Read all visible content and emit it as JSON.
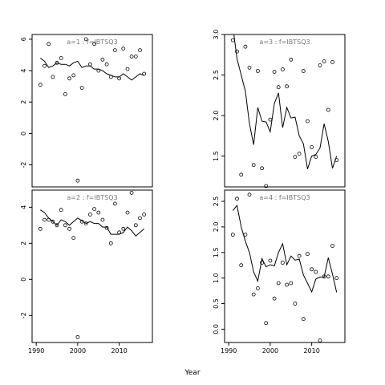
{
  "xlabel": "Year",
  "chart_data": [
    {
      "type": "scatter",
      "title": "a=1  :  f=IBTSQ3",
      "xlim": [
        1989,
        2018
      ],
      "ylim": [
        -3.4,
        6.3
      ],
      "yticks": [
        -2,
        0,
        2,
        4,
        6
      ],
      "xticks": [],
      "points": {
        "x": [
          1991,
          1992,
          1993,
          1994,
          1995,
          1996,
          1997,
          1998,
          1999,
          2000,
          2001,
          2002,
          2003,
          2004,
          2005,
          2006,
          2007,
          2008,
          2009,
          2010,
          2011,
          2012,
          2013,
          2014,
          2015,
          2016
        ],
        "y": [
          3.1,
          4.3,
          5.7,
          3.6,
          4.5,
          4.8,
          2.5,
          3.5,
          3.7,
          -3.0,
          2.9,
          6.0,
          4.4,
          5.7,
          4.0,
          4.7,
          4.4,
          3.6,
          5.3,
          3.5,
          5.4,
          4.1,
          4.9,
          4.9,
          5.3,
          3.8
        ]
      },
      "fit": {
        "x": [
          1991,
          1992,
          1993,
          1994,
          1995,
          1996,
          1997,
          1998,
          1999,
          2000,
          2001,
          2002,
          2003,
          2004,
          2005,
          2006,
          2007,
          2008,
          2009,
          2010,
          2011,
          2012,
          2013,
          2014,
          2015,
          2016
        ],
        "y": [
          4.8,
          4.6,
          4.2,
          4.3,
          4.5,
          4.4,
          4.4,
          4.3,
          4.5,
          4.6,
          4.2,
          4.3,
          4.3,
          4.1,
          4.1,
          4.0,
          3.8,
          3.7,
          3.6,
          3.6,
          3.8,
          3.6,
          3.4,
          3.6,
          3.8,
          3.7
        ]
      }
    },
    {
      "type": "scatter",
      "title": "a=3  :  f=IBTSQ3",
      "xlim": [
        1989,
        2018
      ],
      "ylim": [
        1.12,
        3.0
      ],
      "yticks": [
        1.5,
        2.0,
        2.5,
        3.0
      ],
      "ytick_labels": [
        "1.5",
        "2.0",
        "2.5",
        "3.0"
      ],
      "xticks": [],
      "points": {
        "x": [
          1991,
          1992,
          1993,
          1994,
          1995,
          1996,
          1997,
          1998,
          1999,
          2000,
          2001,
          2002,
          2003,
          2004,
          2005,
          2006,
          2007,
          2008,
          2009,
          2010,
          2011,
          2012,
          2013,
          2014,
          2015,
          2016
        ],
        "y": [
          2.93,
          2.79,
          1.27,
          2.85,
          2.59,
          1.39,
          2.55,
          1.35,
          1.13,
          1.95,
          2.54,
          2.35,
          2.57,
          2.36,
          2.69,
          1.49,
          1.53,
          2.55,
          1.93,
          1.61,
          1.49,
          2.62,
          2.67,
          2.07,
          2.66,
          1.45
        ]
      },
      "fit": {
        "x": [
          1991,
          1992,
          1993,
          1994,
          1995,
          1996,
          1997,
          1998,
          1999,
          2000,
          2001,
          2002,
          2003,
          2004,
          2005,
          2006,
          2007,
          2008,
          2009,
          2010,
          2011,
          2012,
          2013,
          2014,
          2015,
          2016
        ],
        "y": [
          3.1,
          2.7,
          2.5,
          2.3,
          1.9,
          1.64,
          2.1,
          1.93,
          1.92,
          1.8,
          2.15,
          2.28,
          1.85,
          2.1,
          1.97,
          1.98,
          1.75,
          1.65,
          1.34,
          1.5,
          1.52,
          1.6,
          1.9,
          1.68,
          1.35,
          1.5
        ]
      }
    },
    {
      "type": "scatter",
      "title": "a=2  :  f=IBTSQ3",
      "xlim": [
        1989,
        2018
      ],
      "ylim": [
        -3.5,
        4.95
      ],
      "yticks": [
        -2,
        0,
        2,
        4
      ],
      "xticks": [
        1990,
        2000,
        2010
      ],
      "points": {
        "x": [
          1991,
          1992,
          1993,
          1994,
          1995,
          1996,
          1997,
          1998,
          1999,
          2000,
          2001,
          2002,
          2003,
          2004,
          2005,
          2006,
          2007,
          2008,
          2009,
          2010,
          2011,
          2012,
          2013,
          2014,
          2015,
          2016
        ],
        "y": [
          2.8,
          3.3,
          3.3,
          3.2,
          3.0,
          3.85,
          3.0,
          2.8,
          2.3,
          -3.2,
          3.2,
          3.1,
          3.6,
          3.9,
          3.7,
          3.3,
          2.85,
          2.0,
          4.2,
          2.6,
          2.8,
          3.7,
          4.8,
          3.0,
          3.4,
          3.6
        ]
      },
      "fit": {
        "x": [
          1991,
          1992,
          1993,
          1994,
          1995,
          1996,
          1997,
          1998,
          1999,
          2000,
          2001,
          2002,
          2003,
          2004,
          2005,
          2006,
          2007,
          2008,
          2009,
          2010,
          2011,
          2012,
          2013,
          2014,
          2015,
          2016
        ],
        "y": [
          3.85,
          3.7,
          3.4,
          3.2,
          3.0,
          3.3,
          3.2,
          3.0,
          3.2,
          3.4,
          3.25,
          3.1,
          3.2,
          3.1,
          3.1,
          2.9,
          2.9,
          2.5,
          2.5,
          2.5,
          2.6,
          2.9,
          2.7,
          2.4,
          2.6,
          2.8
        ]
      }
    },
    {
      "type": "scatter",
      "title": "a=4  :  f=IBTSQ3",
      "xlim": [
        1989,
        2018
      ],
      "ylim": [
        -0.26,
        2.72
      ],
      "yticks": [
        0.0,
        0.5,
        1.0,
        1.5,
        2.0,
        2.5
      ],
      "ytick_labels": [
        "0.0",
        "0.5",
        "1.0",
        "1.5",
        "2.0",
        "2.5"
      ],
      "xticks": [
        1990,
        2000,
        2010
      ],
      "points": {
        "x": [
          1991,
          1992,
          1993,
          1994,
          1995,
          1996,
          1997,
          1998,
          1999,
          2000,
          2001,
          2002,
          2003,
          2004,
          2005,
          2006,
          2007,
          2008,
          2009,
          2010,
          2011,
          2012,
          2013,
          2014,
          2015,
          2016
        ],
        "y": [
          1.85,
          2.55,
          1.25,
          1.85,
          2.63,
          0.68,
          0.8,
          1.3,
          0.12,
          1.34,
          0.6,
          0.9,
          1.3,
          0.87,
          0.9,
          0.5,
          1.43,
          0.2,
          1.47,
          1.17,
          1.12,
          -0.22,
          1.03,
          1.03,
          1.63,
          1.0
        ]
      },
      "fit": {
        "x": [
          1991,
          1992,
          1993,
          1994,
          1995,
          1996,
          1997,
          1998,
          1999,
          2000,
          2001,
          2002,
          2003,
          2004,
          2005,
          2006,
          2007,
          2008,
          2009,
          2010,
          2011,
          2012,
          2013,
          2014,
          2015,
          2016
        ],
        "y": [
          2.32,
          2.42,
          2.0,
          1.72,
          1.5,
          1.12,
          0.94,
          1.38,
          1.22,
          1.26,
          1.24,
          1.5,
          1.67,
          1.26,
          1.43,
          1.35,
          1.37,
          1.06,
          0.9,
          0.73,
          0.98,
          1.02,
          1.02,
          1.4,
          1.08,
          0.72
        ]
      }
    }
  ]
}
